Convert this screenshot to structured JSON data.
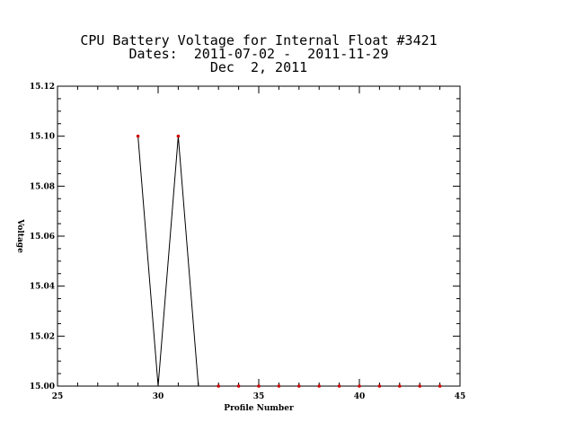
{
  "chart_data": {
    "type": "line",
    "title": "CPU Battery Voltage for Internal Float #3421",
    "subtitle": "Dates:  2011-07-02 -  2011-11-29",
    "date_line": "Dec  2, 2011",
    "xlabel": "Profile Number",
    "ylabel": "Voltage",
    "xlim": [
      25,
      45
    ],
    "ylim": [
      15.0,
      15.12
    ],
    "x_ticks": [
      25,
      30,
      35,
      40,
      45
    ],
    "x_tick_labels": [
      "25",
      "30",
      "35",
      "40",
      "45"
    ],
    "y_ticks": [
      15.0,
      15.02,
      15.04,
      15.06,
      15.08,
      15.1,
      15.12
    ],
    "y_tick_labels": [
      "15.00",
      "15.02",
      "15.04",
      "15.06",
      "15.08",
      "15.10",
      "15.12"
    ],
    "grid": false,
    "line_color": "#000000",
    "marker_color": "#cc0000",
    "series": [
      {
        "x": [
          29,
          30,
          31,
          32,
          33,
          34,
          35,
          36,
          37,
          38,
          39,
          40,
          41,
          42,
          43,
          44
        ],
        "y": [
          15.1,
          15.0,
          15.1,
          15.0,
          15.0,
          15.0,
          15.0,
          15.0,
          15.0,
          15.0,
          15.0,
          15.0,
          15.0,
          15.0,
          15.0,
          15.0
        ],
        "markers": [
          true,
          false,
          true,
          false,
          true,
          true,
          true,
          true,
          true,
          true,
          true,
          true,
          true,
          true,
          true,
          true
        ]
      }
    ]
  }
}
